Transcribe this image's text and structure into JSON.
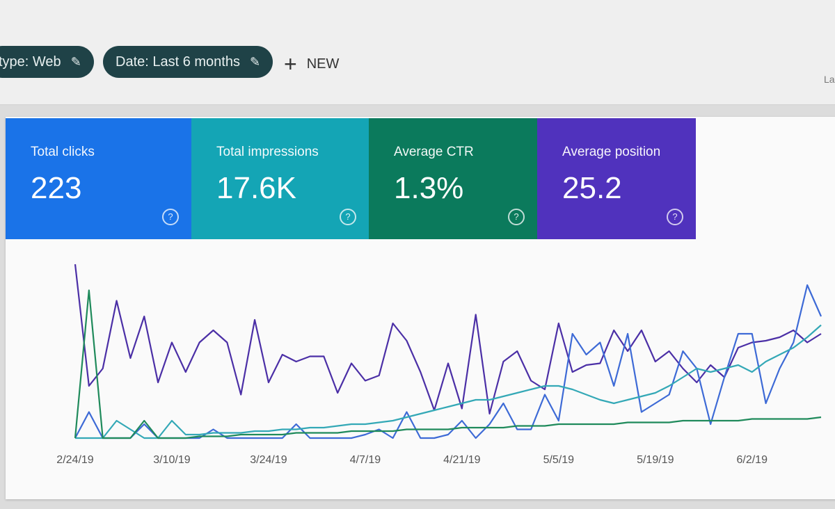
{
  "filters": [
    {
      "label": "type: Web",
      "icon": "pencil-icon"
    },
    {
      "label": "Date: Last 6 months",
      "icon": "pencil-icon"
    }
  ],
  "new_button": {
    "label": "NEW",
    "icon": "plus-icon"
  },
  "corner_text": "La",
  "cards": [
    {
      "label": "Total clicks",
      "value": "223",
      "color": "#1a73e8"
    },
    {
      "label": "Total impressions",
      "value": "17.6K",
      "color": "#14a5b5"
    },
    {
      "label": "Average CTR",
      "value": "1.3%",
      "color": "#0b7a5c"
    },
    {
      "label": "Average position",
      "value": "25.2",
      "color": "#5032bd"
    }
  ],
  "help_glyph": "?",
  "chart_data": {
    "type": "line",
    "x": [
      "2/24/19",
      "2/26/19",
      "2/28/19",
      "3/2/19",
      "3/4/19",
      "3/6/19",
      "3/8/19",
      "3/10/19",
      "3/12/19",
      "3/14/19",
      "3/16/19",
      "3/18/19",
      "3/20/19",
      "3/22/19",
      "3/24/19",
      "3/26/19",
      "3/28/19",
      "3/30/19",
      "4/1/19",
      "4/3/19",
      "4/5/19",
      "4/7/19",
      "4/9/19",
      "4/11/19",
      "4/13/19",
      "4/15/19",
      "4/17/19",
      "4/19/19",
      "4/21/19",
      "4/23/19",
      "4/25/19",
      "4/27/19",
      "4/29/19",
      "5/1/19",
      "5/3/19",
      "5/5/19",
      "5/7/19",
      "5/9/19",
      "5/11/19",
      "5/13/19",
      "5/15/19",
      "5/17/19",
      "5/19/19",
      "5/21/19",
      "5/23/19",
      "5/25/19",
      "5/27/19",
      "5/29/19",
      "5/31/19",
      "6/2/19",
      "6/4/19",
      "6/6/19",
      "6/8/19",
      "6/10/19",
      "6/12/19"
    ],
    "x_tick_labels": [
      "2/24/19",
      "3/10/19",
      "3/24/19",
      "4/7/19",
      "4/21/19",
      "5/5/19",
      "5/19/19",
      "6/2/19"
    ],
    "y_axis_visible": false,
    "ylim": [
      0,
      100
    ],
    "grid": false,
    "series": [
      {
        "color": "#4b2fa6",
        "values": [
          100,
          30,
          40,
          79,
          46,
          70,
          32,
          55,
          38,
          55,
          62,
          55,
          25,
          68,
          32,
          48,
          44,
          47,
          47,
          26,
          43,
          33,
          36,
          66,
          56,
          38,
          16,
          43,
          17,
          71,
          14,
          44,
          50,
          33,
          28,
          66,
          38,
          42,
          43,
          62,
          50,
          62,
          44,
          50,
          40,
          32,
          42,
          35,
          52,
          55,
          56,
          58,
          62,
          55,
          60
        ]
      },
      {
        "color": "#3d6ad6",
        "values": [
          0,
          15,
          0,
          0,
          0,
          8,
          0,
          0,
          0,
          0,
          5,
          0,
          0,
          0,
          0,
          0,
          8,
          0,
          0,
          0,
          0,
          2,
          5,
          0,
          15,
          0,
          0,
          2,
          10,
          0,
          8,
          20,
          5,
          5,
          25,
          10,
          60,
          48,
          55,
          30,
          60,
          15,
          20,
          25,
          50,
          40,
          8,
          35,
          60,
          60,
          20,
          40,
          55,
          88,
          70
        ]
      },
      {
        "color": "#33a8b6",
        "values": [
          0,
          0,
          0,
          10,
          5,
          0,
          0,
          10,
          2,
          2,
          3,
          3,
          3,
          4,
          4,
          5,
          5,
          6,
          6,
          7,
          8,
          8,
          9,
          10,
          12,
          14,
          16,
          18,
          20,
          22,
          22,
          24,
          26,
          28,
          30,
          30,
          28,
          25,
          22,
          20,
          22,
          24,
          26,
          30,
          35,
          40,
          38,
          40,
          42,
          38,
          44,
          48,
          52,
          58,
          65
        ]
      },
      {
        "color": "#1f8a5b",
        "values": [
          0,
          85,
          0,
          0,
          0,
          10,
          0,
          0,
          0,
          1,
          1,
          1,
          2,
          2,
          2,
          2,
          3,
          3,
          3,
          3,
          4,
          4,
          4,
          4,
          5,
          5,
          5,
          5,
          6,
          6,
          6,
          6,
          7,
          7,
          7,
          8,
          8,
          8,
          8,
          8,
          9,
          9,
          9,
          9,
          10,
          10,
          10,
          10,
          10,
          11,
          11,
          11,
          11,
          11,
          12
        ]
      }
    ]
  }
}
